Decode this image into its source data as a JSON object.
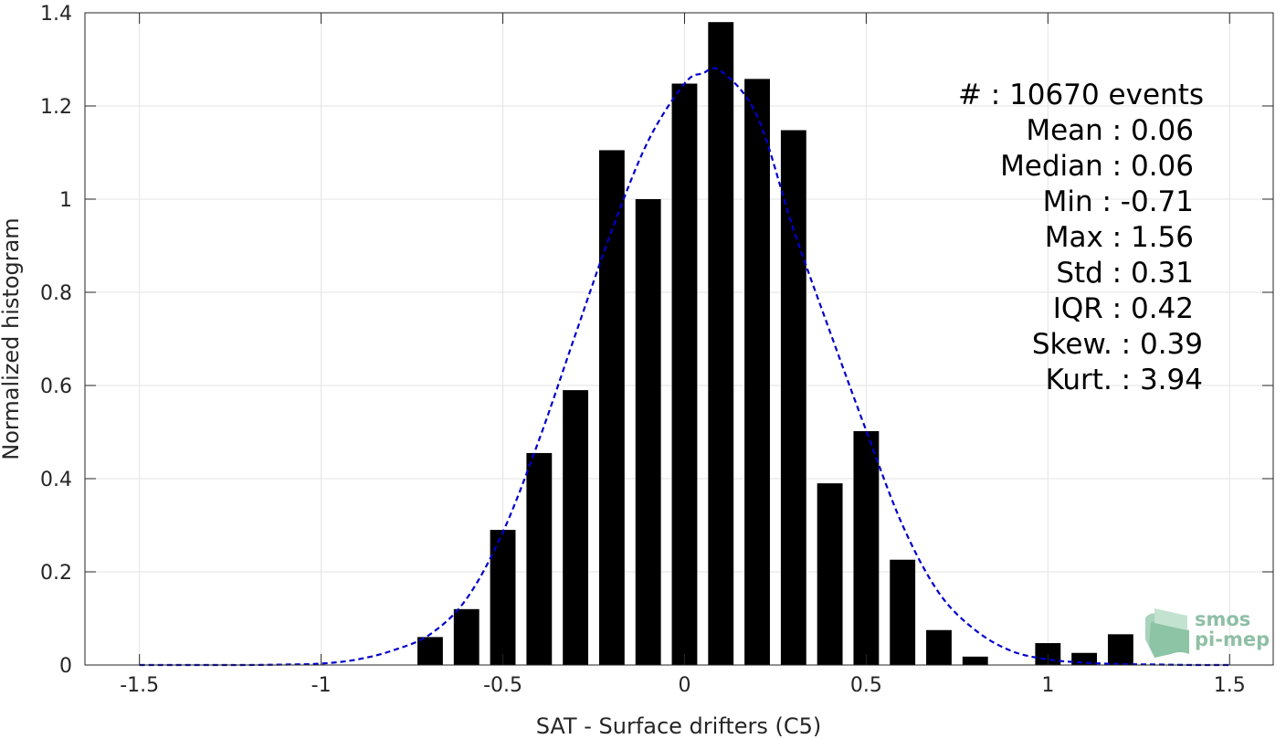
{
  "chart_data": {
    "type": "bar",
    "xlabel": "SAT - Surface drifters (C5)",
    "ylabel": "Normalized histogram",
    "xlim": [
      -1.65,
      1.62
    ],
    "ylim": [
      0,
      1.4
    ],
    "xticks": [
      -1.5,
      -1,
      -0.5,
      0,
      0.5,
      1,
      1.5
    ],
    "xtick_labels": [
      "-1.5",
      "-1",
      "-0.5",
      "0",
      "0.5",
      "1",
      "1.5"
    ],
    "yticks": [
      0,
      0.2,
      0.4,
      0.6,
      0.8,
      1,
      1.2,
      1.4
    ],
    "ytick_labels": [
      "0",
      "0.2",
      "0.4",
      "0.6",
      "0.8",
      "1",
      "1.2",
      "1.4"
    ],
    "grid": true,
    "bar_color": "#000000",
    "bar_width": 0.07,
    "bars": {
      "x": [
        -0.7,
        -0.6,
        -0.5,
        -0.4,
        -0.3,
        -0.2,
        -0.1,
        0.0,
        0.1,
        0.2,
        0.3,
        0.4,
        0.5,
        0.6,
        0.7,
        0.8,
        0.9,
        1.0,
        1.1,
        1.2
      ],
      "values": [
        0.06,
        0.12,
        0.29,
        0.455,
        0.59,
        1.105,
        1.0,
        1.248,
        1.38,
        1.258,
        1.148,
        0.39,
        0.502,
        0.226,
        0.075,
        0.018,
        0.0,
        0.047,
        0.026,
        0.066
      ]
    },
    "fit_curve": {
      "style": "dashed",
      "color": "#0000cc",
      "x": [
        -1.5,
        -1.4,
        -1.3,
        -1.2,
        -1.1,
        -1.0,
        -0.9,
        -0.8,
        -0.7,
        -0.6,
        -0.5,
        -0.4,
        -0.3,
        -0.2,
        -0.1,
        0.0,
        0.05,
        0.1,
        0.2,
        0.3,
        0.4,
        0.5,
        0.6,
        0.7,
        0.8,
        0.9,
        1.0,
        1.1,
        1.2,
        1.3,
        1.4,
        1.5
      ],
      "y": [
        0.0,
        0.0,
        0.0,
        0.0,
        0.001,
        0.003,
        0.012,
        0.032,
        0.066,
        0.142,
        0.285,
        0.484,
        0.71,
        0.933,
        1.125,
        1.248,
        1.27,
        1.275,
        1.178,
        0.935,
        0.716,
        0.503,
        0.3,
        0.155,
        0.075,
        0.03,
        0.012,
        0.005,
        0.002,
        0.001,
        0.0,
        0.0
      ]
    },
    "stats": [
      {
        "label": "#  : 10670 events"
      },
      {
        "label": "Mean : 0.06"
      },
      {
        "label": "Median : 0.06"
      },
      {
        "label": "Min : -0.71"
      },
      {
        "label": "Max : 1.56"
      },
      {
        "label": "Std : 0.31"
      },
      {
        "label": "IQR : 0.42"
      },
      {
        "label": "Skew. : 0.39"
      },
      {
        "label": "Kurt. : 3.94"
      }
    ]
  },
  "logo": {
    "line1": "smos",
    "line2": "pi-mep",
    "color": "#8fbfa6"
  }
}
